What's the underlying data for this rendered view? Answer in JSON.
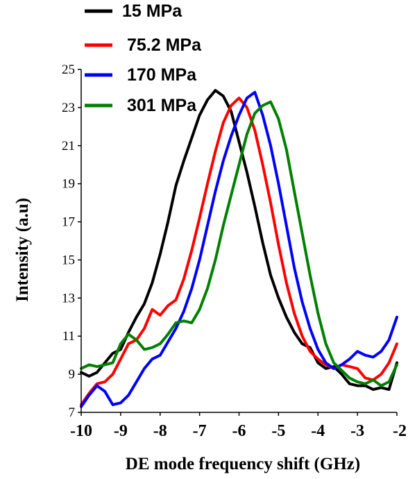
{
  "chart_data": {
    "type": "line",
    "title": "",
    "xlabel": "DE mode frequency shift (GHz)",
    "ylabel": "Intensity (a.u)",
    "xlim": [
      -10,
      -2
    ],
    "ylim": [
      7,
      25
    ],
    "xticks": [
      "-10",
      "-9",
      "-8",
      "-7",
      "-6",
      "-5",
      "-4",
      "-3",
      "-2"
    ],
    "yticks": [
      "7",
      "9",
      "11",
      "13",
      "15",
      "17",
      "19",
      "21",
      "23",
      "25"
    ],
    "grid": false,
    "legend_position": "top-left",
    "series": [
      {
        "name": "15 MPa",
        "color": "#000000",
        "x": [
          -10,
          -9.8,
          -9.6,
          -9.4,
          -9.2,
          -9.0,
          -8.8,
          -8.6,
          -8.4,
          -8.2,
          -8.0,
          -7.8,
          -7.6,
          -7.4,
          -7.2,
          -7.0,
          -6.8,
          -6.6,
          -6.4,
          -6.2,
          -6.0,
          -5.8,
          -5.6,
          -5.4,
          -5.2,
          -5.0,
          -4.8,
          -4.6,
          -4.4,
          -4.2,
          -4.0,
          -3.8,
          -3.6,
          -3.4,
          -3.2,
          -3.0,
          -2.8,
          -2.6,
          -2.4,
          -2.2,
          -2.0
        ],
        "y": [
          9.1,
          8.9,
          9.1,
          9.6,
          10.1,
          10.3,
          11.2,
          12.0,
          12.7,
          13.8,
          15.3,
          17.0,
          18.9,
          20.2,
          21.4,
          22.6,
          23.4,
          23.9,
          23.6,
          22.8,
          21.2,
          19.6,
          17.8,
          15.9,
          14.2,
          13.0,
          12.0,
          11.2,
          10.6,
          10.4,
          9.6,
          9.3,
          9.4,
          9.0,
          8.5,
          8.4,
          8.4,
          8.2,
          8.3,
          8.2,
          9.6
        ]
      },
      {
        "name": "75.2 MPa",
        "color": "#ff0000",
        "x": [
          -10,
          -9.8,
          -9.6,
          -9.4,
          -9.2,
          -9.0,
          -8.8,
          -8.6,
          -8.4,
          -8.2,
          -8.0,
          -7.8,
          -7.6,
          -7.4,
          -7.2,
          -7.0,
          -6.8,
          -6.6,
          -6.4,
          -6.2,
          -6.0,
          -5.8,
          -5.6,
          -5.4,
          -5.2,
          -5.0,
          -4.8,
          -4.6,
          -4.4,
          -4.2,
          -4.0,
          -3.8,
          -3.6,
          -3.4,
          -3.2,
          -3.0,
          -2.8,
          -2.6,
          -2.4,
          -2.2,
          -2.0
        ],
        "y": [
          7.4,
          8.0,
          8.5,
          8.6,
          9.0,
          9.8,
          10.6,
          10.8,
          11.4,
          12.4,
          12.1,
          12.6,
          12.9,
          14.0,
          15.5,
          17.2,
          19.0,
          20.7,
          22.2,
          23.1,
          23.5,
          23.0,
          21.8,
          20.0,
          18.0,
          15.8,
          13.8,
          12.2,
          11.0,
          10.2,
          9.8,
          9.5,
          9.3,
          9.5,
          9.4,
          9.3,
          8.8,
          8.7,
          9.0,
          9.6,
          10.6
        ]
      },
      {
        "name": "170 MPa",
        "color": "#0000ff",
        "x": [
          -10,
          -9.8,
          -9.6,
          -9.4,
          -9.2,
          -9.0,
          -8.8,
          -8.6,
          -8.4,
          -8.2,
          -8.0,
          -7.8,
          -7.6,
          -7.4,
          -7.2,
          -7.0,
          -6.8,
          -6.6,
          -6.4,
          -6.2,
          -6.0,
          -5.8,
          -5.6,
          -5.4,
          -5.2,
          -5.0,
          -4.8,
          -4.6,
          -4.4,
          -4.2,
          -4.0,
          -3.8,
          -3.6,
          -3.4,
          -3.2,
          -3.0,
          -2.8,
          -2.6,
          -2.4,
          -2.2,
          -2.0
        ],
        "y": [
          7.3,
          7.9,
          8.4,
          8.1,
          7.4,
          7.5,
          7.9,
          8.6,
          9.3,
          9.8,
          10.0,
          10.7,
          11.4,
          12.3,
          13.5,
          15.0,
          16.8,
          18.6,
          20.2,
          21.5,
          22.6,
          23.5,
          23.8,
          22.6,
          21.0,
          19.0,
          16.8,
          14.6,
          12.8,
          11.4,
          10.3,
          9.6,
          9.3,
          9.5,
          9.8,
          10.2,
          10.0,
          9.9,
          10.2,
          10.8,
          12.0
        ]
      },
      {
        "name": "301 MPa",
        "color": "#008000",
        "x": [
          -10,
          -9.8,
          -9.6,
          -9.4,
          -9.2,
          -9.0,
          -8.8,
          -8.6,
          -8.4,
          -8.2,
          -8.0,
          -7.8,
          -7.6,
          -7.4,
          -7.2,
          -7.0,
          -6.8,
          -6.6,
          -6.4,
          -6.2,
          -6.0,
          -5.8,
          -5.6,
          -5.4,
          -5.2,
          -5.0,
          -4.8,
          -4.6,
          -4.4,
          -4.2,
          -4.0,
          -3.8,
          -3.6,
          -3.4,
          -3.2,
          -3.0,
          -2.8,
          -2.6,
          -2.4,
          -2.2,
          -2.0
        ],
        "y": [
          9.3,
          9.5,
          9.4,
          9.5,
          9.6,
          10.6,
          11.1,
          10.8,
          10.3,
          10.4,
          10.6,
          11.1,
          11.7,
          11.8,
          11.7,
          12.4,
          13.5,
          15.0,
          16.8,
          18.4,
          20.0,
          21.6,
          22.7,
          23.1,
          23.3,
          22.4,
          20.8,
          18.6,
          16.4,
          14.2,
          12.2,
          10.6,
          9.6,
          9.2,
          8.8,
          8.6,
          8.5,
          8.7,
          8.4,
          8.6,
          9.5
        ]
      }
    ]
  }
}
